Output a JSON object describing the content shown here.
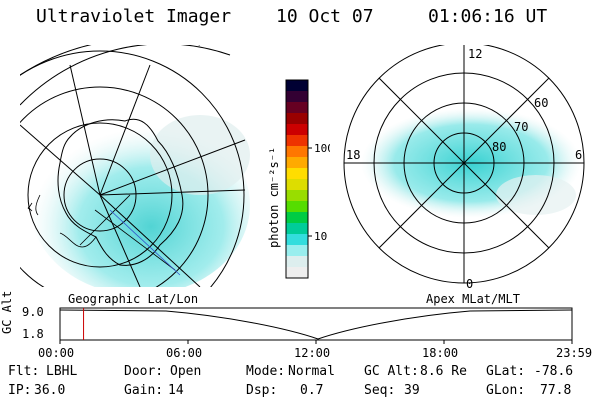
{
  "header": {
    "instrument": "Ultraviolet Imager",
    "date": "10 Oct 07",
    "time": "01:06:16 UT"
  },
  "colorbar": {
    "title": "photon cm⁻²s⁻¹",
    "ticks": [
      "100",
      "10"
    ],
    "scale": "log",
    "colors": [
      "#000033",
      "#330033",
      "#660022",
      "#990000",
      "#cc0000",
      "#ee3300",
      "#ff7700",
      "#ffaa00",
      "#ffdd00",
      "#dddd00",
      "#99dd00",
      "#55dd00",
      "#00cc44",
      "#00cc99",
      "#33dddd",
      "#99eeee",
      "#ddeeee",
      "#eeeeee"
    ]
  },
  "left_map": {
    "label": "Geographic Lat/Lon"
  },
  "right_map": {
    "label": "Apex MLat/MLT",
    "mlt_labels": {
      "top": "12",
      "left": "18",
      "right": "6",
      "bottom": "0"
    },
    "lat_labels": [
      "60",
      "70",
      "80"
    ]
  },
  "timeline": {
    "ylabel": "GC Alt",
    "yticks": [
      "9.0",
      "1.8"
    ],
    "xticks": [
      "00:00",
      "06:00",
      "12:00",
      "18:00",
      "23:59"
    ],
    "marker_time_hours": 1.104,
    "marker_color": "#cc0000"
  },
  "info": {
    "flt_label": "Flt:",
    "flt_value": "LBHL",
    "door_label": "Door:",
    "door_value": "Open",
    "mode_label": "Mode:",
    "mode_value": "Normal",
    "gcalt_label": "GC Alt:",
    "gcalt_value": "8.6 Re",
    "glat_label": "GLat:",
    "glat_value": "-78.6",
    "ip_label": "IP:",
    "ip_value": "36.0",
    "gain_label": "Gain:",
    "gain_value": "14",
    "dsp_label": "Dsp:",
    "dsp_value": "0.7",
    "seq_label": "Seq:",
    "seq_value": "39",
    "glon_label": "GLon:",
    "glon_value": "77.8"
  }
}
